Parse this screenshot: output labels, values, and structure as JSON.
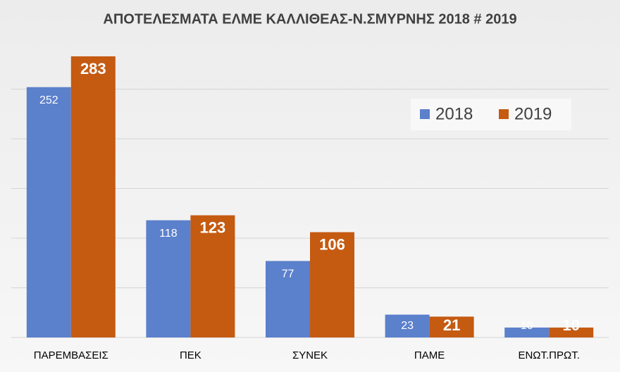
{
  "chart_data": {
    "type": "bar",
    "title": "ΑΠΟΤΕΛΕΣΜΑΤΑ ΕΛΜΕ ΚΑΛΛΙΘΕΑΣ-Ν.ΣΜΥΡΝΗΣ 2018 # 2019",
    "categories": [
      "ΠΑΡΕΜΒΑΣΕΙΣ",
      "ΠΕΚ",
      "ΣΥΝΕΚ",
      "ΠΑΜΕ",
      "ΕΝΩΤ.ΠΡΩΤ."
    ],
    "series": [
      {
        "name": "2018",
        "color": "#5b80cc",
        "values": [
          252,
          118,
          77,
          23,
          10
        ]
      },
      {
        "name": "2019",
        "color": "#c55a11",
        "values": [
          283,
          123,
          106,
          21,
          10
        ]
      }
    ],
    "ylim": [
      0,
      300
    ],
    "yticks": [
      0,
      50,
      100,
      150,
      200,
      250
    ],
    "grid": true,
    "legend": "upper-right"
  }
}
